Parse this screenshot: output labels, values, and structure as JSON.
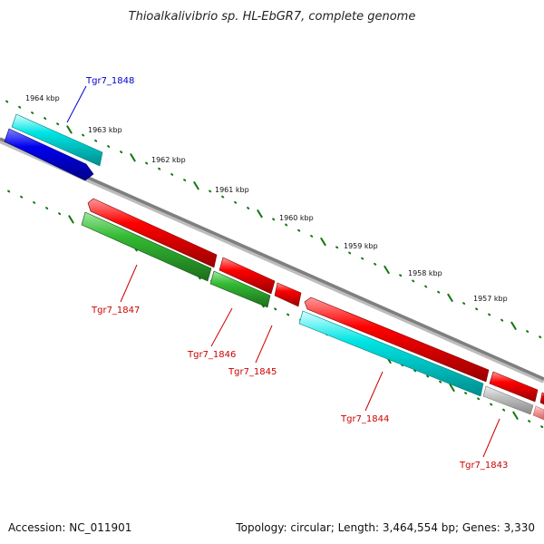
{
  "title": "Thioalkalivibrio sp. HL-EbGR7, complete genome",
  "footer": {
    "accession": "Accession: NC_011901",
    "summary": "Topology: circular; Length: 3,464,554 bp; Genes: 3,330"
  },
  "colors": {
    "cds_forward": "#ee0000",
    "cds_reverse": "#22aa22",
    "cds_other": "#00dddd",
    "rna": "#0000ee",
    "pseudo": "#bbbbbb",
    "backbone": "#7f7f7f",
    "ticks": "#117711",
    "label_highlight": "#0000cc",
    "label_default": "#cc0000"
  },
  "kbp_ticks": [
    "1964 kbp",
    "1963 kbp",
    "1962 kbp",
    "1961 kbp",
    "1960 kbp",
    "1959 kbp",
    "1958 kbp",
    "1957 kbp"
  ],
  "gene_labels": [
    {
      "id": "gene-label-tgr7-1848",
      "text": "Tgr7_1848",
      "color": "#0000cc"
    },
    {
      "id": "gene-label-tgr7-1847",
      "text": "Tgr7_1847",
      "color": "#cc0000"
    },
    {
      "id": "gene-label-tgr7-1846",
      "text": "Tgr7_1846",
      "color": "#cc0000"
    },
    {
      "id": "gene-label-tgr7-1845",
      "text": "Tgr7_1845",
      "color": "#cc0000"
    },
    {
      "id": "gene-label-tgr7-1844",
      "text": "Tgr7_1844",
      "color": "#cc0000"
    },
    {
      "id": "gene-label-tgr7-1843",
      "text": "Tgr7_1843",
      "color": "#cc0000"
    }
  ]
}
